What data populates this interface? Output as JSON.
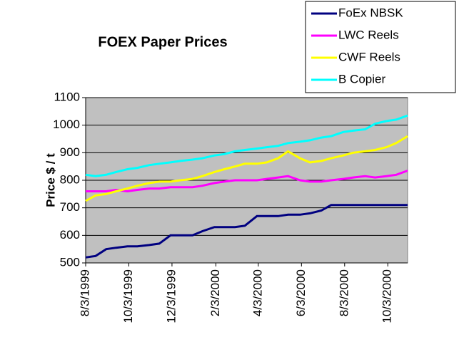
{
  "chart_data": {
    "type": "line",
    "title": "FOEX Paper Prices",
    "y_label": "Price $ / t",
    "x": [
      "8/3/1999",
      "8/17/1999",
      "9/1/1999",
      "9/15/1999",
      "10/1/1999",
      "10/15/1999",
      "11/1/1999",
      "11/15/1999",
      "12/1/1999",
      "12/15/1999",
      "1/1/2000",
      "1/15/2000",
      "2/1/2000",
      "2/15/2000",
      "3/1/2000",
      "3/15/2000",
      "4/1/2000",
      "4/15/2000",
      "5/1/2000",
      "5/15/2000",
      "6/1/2000",
      "6/15/2000",
      "7/1/2000",
      "7/15/2000",
      "8/1/2000",
      "8/15/2000",
      "9/1/2000",
      "9/15/2000",
      "10/1/2000",
      "10/15/2000",
      "10/31/2000"
    ],
    "series": [
      {
        "name": "FoEx NBSK",
        "color": "#000080",
        "values": [
          520,
          525,
          550,
          555,
          560,
          560,
          565,
          570,
          600,
          600,
          600,
          615,
          630,
          630,
          630,
          635,
          670,
          670,
          670,
          675,
          675,
          680,
          690,
          710,
          710,
          710,
          710,
          710,
          710,
          710,
          710
        ]
      },
      {
        "name": "LWC Reels",
        "color": "#ff00ff",
        "values": [
          760,
          760,
          760,
          765,
          760,
          765,
          770,
          770,
          775,
          775,
          775,
          780,
          790,
          795,
          800,
          800,
          800,
          805,
          810,
          815,
          800,
          795,
          795,
          800,
          805,
          810,
          815,
          810,
          815,
          820,
          835
        ]
      },
      {
        "name": "CWF Reels",
        "color": "#ffff00",
        "values": [
          725,
          745,
          750,
          760,
          770,
          780,
          790,
          795,
          795,
          800,
          805,
          815,
          830,
          840,
          850,
          860,
          860,
          865,
          880,
          905,
          880,
          865,
          870,
          880,
          890,
          900,
          905,
          910,
          920,
          935,
          960
        ]
      },
      {
        "name": "B Copier",
        "color": "#00ffff",
        "values": [
          820,
          815,
          820,
          830,
          840,
          845,
          855,
          860,
          865,
          870,
          875,
          880,
          890,
          895,
          905,
          910,
          915,
          920,
          925,
          935,
          940,
          945,
          955,
          960,
          975,
          980,
          985,
          1005,
          1015,
          1020,
          1035
        ]
      }
    ],
    "xlim": [
      "8/3/1999",
      "10/31/2000"
    ],
    "xticks": [
      "8/3/1999",
      "10/3/1999",
      "12/3/1999",
      "2/3/2000",
      "4/3/2000",
      "6/3/2000",
      "8/3/2000",
      "10/3/2000"
    ],
    "ylim": [
      500,
      1100
    ],
    "yticks": [
      500,
      600,
      700,
      800,
      900,
      1000,
      1100
    ],
    "grid": true,
    "legend": "top-right",
    "plot_background": "#c0c0c0"
  }
}
